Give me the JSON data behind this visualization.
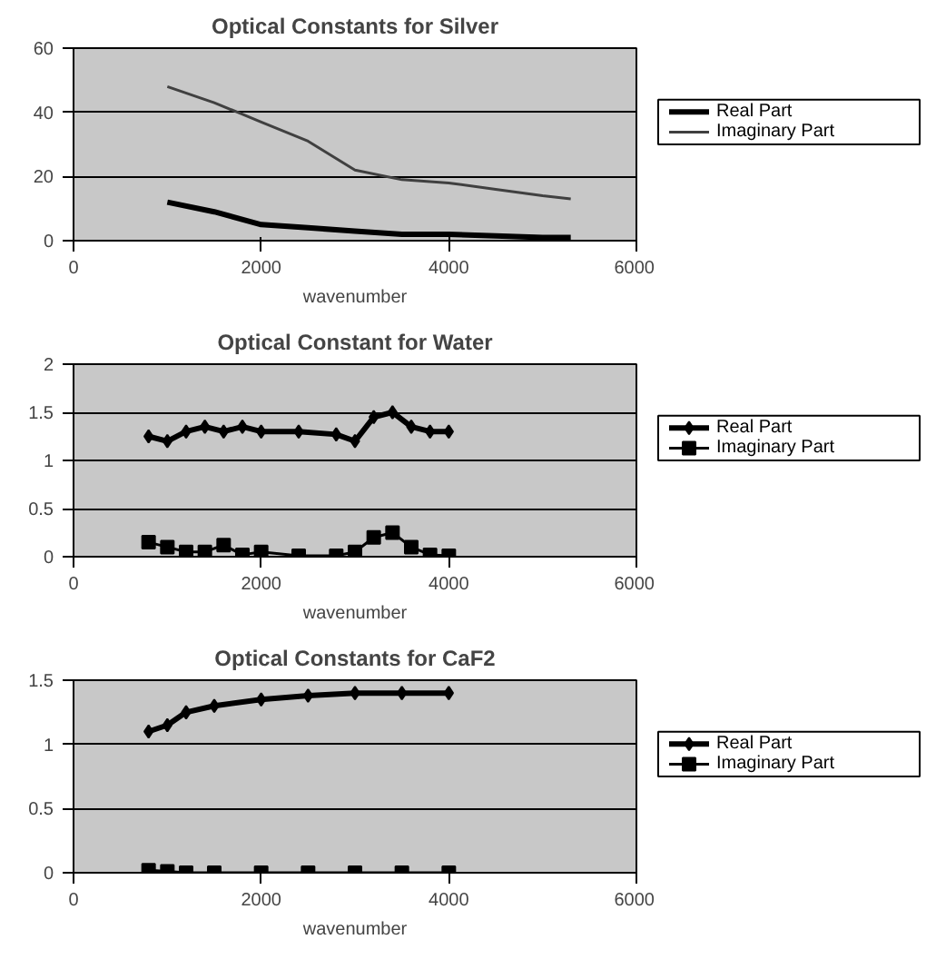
{
  "chart_data": [
    {
      "type": "line",
      "title": "Optical Constants for Silver",
      "xlabel": "wavenumber",
      "x": [
        1000,
        1500,
        2000,
        2500,
        3000,
        3500,
        4000,
        4500,
        5000,
        5300
      ],
      "xlim": [
        0,
        6000
      ],
      "xticks": [
        0,
        2000,
        4000,
        6000
      ],
      "ylim": [
        0,
        60
      ],
      "yticks": [
        0,
        20,
        40,
        60
      ],
      "grid": "y",
      "legend": "right",
      "marker": "none",
      "series": [
        {
          "name": "Real Part",
          "color": "#000000",
          "values": [
            12,
            9,
            5,
            4,
            3,
            2,
            2,
            1.5,
            1,
            1
          ]
        },
        {
          "name": "Imaginary Part",
          "color": "#404040",
          "values": [
            48,
            43,
            37,
            31,
            22,
            19,
            18,
            16,
            14,
            13
          ]
        }
      ]
    },
    {
      "type": "line",
      "title": "Optical Constant for Water",
      "xlabel": "wavenumber",
      "x": [
        800,
        1000,
        1200,
        1400,
        1600,
        1800,
        2000,
        2400,
        2800,
        3000,
        3200,
        3400,
        3600,
        3800,
        4000
      ],
      "xlim": [
        0,
        6000
      ],
      "xticks": [
        0,
        2000,
        4000,
        6000
      ],
      "ylim": [
        0,
        2
      ],
      "yticks": [
        0,
        0.5,
        1,
        1.5,
        2
      ],
      "grid": "y",
      "legend": "right",
      "series": [
        {
          "name": "Real Part",
          "color": "#000000",
          "marker": "diamond",
          "values": [
            1.25,
            1.2,
            1.3,
            1.35,
            1.3,
            1.35,
            1.3,
            1.3,
            1.27,
            1.2,
            1.45,
            1.5,
            1.35,
            1.3,
            1.3
          ]
        },
        {
          "name": "Imaginary Part",
          "color": "#000000",
          "marker": "square",
          "values": [
            0.15,
            0.1,
            0.05,
            0.05,
            0.12,
            0.02,
            0.05,
            0.01,
            0.01,
            0.05,
            0.2,
            0.25,
            0.1,
            0.02,
            0.01
          ]
        }
      ]
    },
    {
      "type": "line",
      "title": "Optical Constants for CaF2",
      "xlabel": "wavenumber",
      "x": [
        800,
        1000,
        1200,
        1500,
        2000,
        2500,
        3000,
        3500,
        4000
      ],
      "xlim": [
        0,
        6000
      ],
      "xticks": [
        0,
        2000,
        4000,
        6000
      ],
      "ylim": [
        0,
        1.5
      ],
      "yticks": [
        0,
        0.5,
        1,
        1.5
      ],
      "grid": "y",
      "legend": "right",
      "series": [
        {
          "name": "Real Part",
          "color": "#000000",
          "marker": "diamond",
          "values": [
            1.1,
            1.15,
            1.25,
            1.3,
            1.35,
            1.38,
            1.4,
            1.4,
            1.4
          ]
        },
        {
          "name": "Imaginary Part",
          "color": "#000000",
          "marker": "square",
          "values": [
            0.02,
            0.01,
            0,
            0,
            0,
            0,
            0,
            0,
            0
          ]
        }
      ]
    }
  ]
}
